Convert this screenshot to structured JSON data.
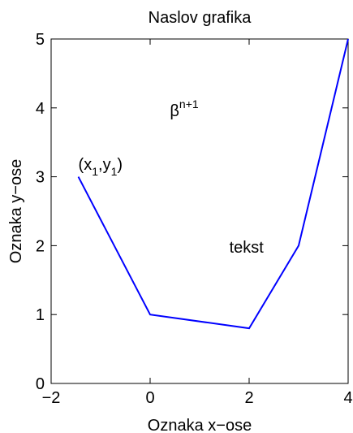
{
  "chart_data": {
    "type": "line",
    "title": "Naslov grafika",
    "xlabel": "Oznaka x−ose",
    "ylabel": "Oznaka y−ose",
    "xlim": [
      -2,
      4
    ],
    "ylim": [
      0,
      5
    ],
    "xticks": [
      -2,
      0,
      2,
      4
    ],
    "yticks": [
      0,
      1,
      2,
      3,
      4,
      5
    ],
    "xtick_labels": [
      "−2",
      "0",
      "2",
      "4"
    ],
    "ytick_labels": [
      "0",
      "1",
      "2",
      "3",
      "4",
      "5"
    ],
    "grid": false,
    "series": [
      {
        "color": "#0000ff",
        "x": [
          -1.45,
          0,
          2,
          3,
          4
        ],
        "y": [
          3,
          1,
          0.8,
          2,
          5
        ]
      }
    ],
    "annotations": [
      {
        "x": 0.4,
        "y": 4.0,
        "text": "β",
        "sup": "n+1"
      },
      {
        "x": -1.45,
        "y": 3.1,
        "text": "(x",
        "sub1": "1",
        "mid": ",y",
        "sub2": "1",
        "end": ")"
      },
      {
        "x": 1.6,
        "y": 1.9,
        "text": "tekst"
      }
    ]
  }
}
